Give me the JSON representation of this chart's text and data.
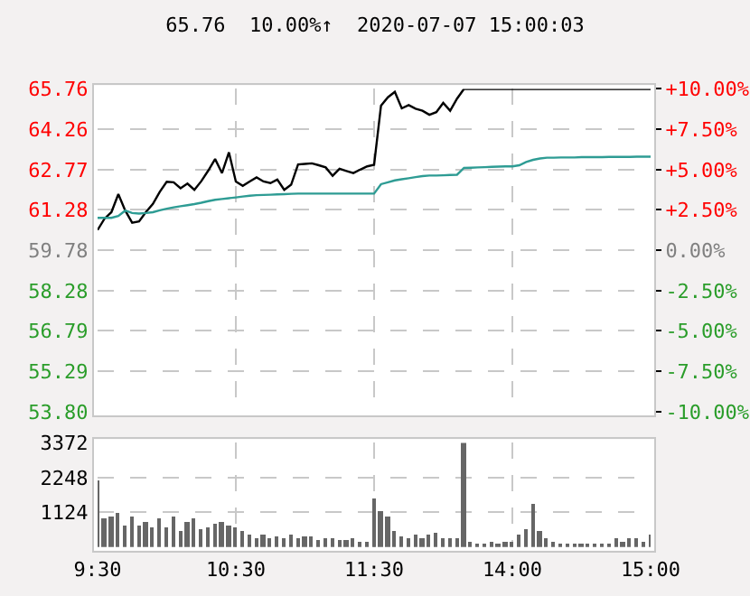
{
  "chart_data": [
    {
      "type": "line",
      "title": "65.76  10.00%↑  2020-07-07 15:00:03",
      "categories": [
        null,
        null,
        null,
        null,
        null,
        null,
        null,
        null,
        null,
        null,
        null,
        null,
        null,
        null,
        null,
        null,
        null,
        null,
        null,
        null,
        null,
        null,
        null,
        null,
        null,
        null,
        null,
        null,
        null,
        null,
        null,
        null,
        null,
        null,
        null,
        null,
        null,
        null,
        null,
        null,
        null,
        null,
        null,
        null,
        null,
        null,
        null,
        null,
        null,
        null,
        null,
        null,
        null,
        null,
        null,
        null,
        null,
        null,
        null,
        null,
        null,
        null,
        null,
        null,
        null,
        null,
        null,
        null,
        null,
        null,
        null,
        null,
        null,
        null,
        null,
        null,
        null,
        null,
        null,
        null,
        null
      ],
      "series": [
        {
          "color": "#000000",
          "values": [
            60.53,
            60.95,
            61.19,
            61.86,
            61.25,
            60.8,
            60.85,
            61.2,
            61.5,
            61.95,
            62.32,
            62.3,
            62.08,
            62.25,
            62.02,
            62.34,
            62.73,
            63.16,
            62.64,
            63.41,
            62.33,
            62.17,
            62.33,
            62.48,
            62.33,
            62.27,
            62.4,
            62.02,
            62.21,
            62.96,
            62.98,
            63.0,
            62.93,
            62.85,
            62.54,
            62.8,
            62.72,
            62.64,
            62.77,
            62.89,
            62.95,
            65.14,
            65.45,
            65.65,
            65.04,
            65.16,
            65.03,
            64.95,
            64.8,
            64.9,
            65.24,
            64.95,
            65.4,
            65.76,
            65.76,
            65.76,
            65.76,
            65.76,
            65.76,
            65.76,
            65.76,
            65.76,
            65.76,
            65.76,
            65.76,
            65.76,
            65.76,
            65.76,
            65.76,
            65.76,
            65.76,
            65.76,
            65.76,
            65.76,
            65.76,
            65.76,
            65.76,
            65.76,
            65.76,
            65.76,
            65.76
          ]
        },
        {
          "color": "#2e9c94",
          "values": [
            60.98,
            60.98,
            60.98,
            61.05,
            61.25,
            61.16,
            61.14,
            61.16,
            61.19,
            61.26,
            61.32,
            61.37,
            61.41,
            61.45,
            61.49,
            61.54,
            61.6,
            61.65,
            61.68,
            61.71,
            61.74,
            61.77,
            61.8,
            61.82,
            61.83,
            61.84,
            61.85,
            61.86,
            61.87,
            61.88,
            61.88,
            61.88,
            61.88,
            61.88,
            61.88,
            61.88,
            61.88,
            61.88,
            61.88,
            61.88,
            61.88,
            62.23,
            62.3,
            62.37,
            62.41,
            62.45,
            62.49,
            62.53,
            62.55,
            62.55,
            62.56,
            62.57,
            62.58,
            62.83,
            62.84,
            62.85,
            62.86,
            62.87,
            62.88,
            62.89,
            62.89,
            62.93,
            63.05,
            63.13,
            63.18,
            63.21,
            63.21,
            63.22,
            63.22,
            63.22,
            63.23,
            63.23,
            63.23,
            63.23,
            63.24,
            63.24,
            63.24,
            63.24,
            63.25,
            63.25,
            63.25
          ]
        }
      ],
      "ylim": [
        53.8,
        65.76
      ],
      "yticks": [
        65.76,
        64.26,
        62.77,
        61.28,
        59.78,
        58.28,
        56.79,
        55.29,
        {
          "value": 53.8,
          "label": "53.80"
        }
      ],
      "y2lim": [
        -10,
        10
      ],
      "y2ticks": [
        {
          "value": 10,
          "label": "+10.00%"
        },
        {
          "value": 7.5,
          "label": "+7.50%"
        },
        {
          "value": 5,
          "label": "+5.00%"
        },
        {
          "value": 2.5,
          "label": "+2.50%"
        },
        {
          "value": 0,
          "label": "0.00%"
        },
        {
          "value": -2.5,
          "label": "-2.50%"
        },
        {
          "value": -5,
          "label": "-5.00%"
        },
        {
          "value": -7.5,
          "label": "-7.50%"
        },
        {
          "value": -10,
          "label": "-10.00%"
        }
      ],
      "grid": true,
      "tick_labels": "y"
    },
    {
      "type": "bar",
      "color": "#666666",
      "categories": [
        "9:30",
        null,
        null,
        null,
        null,
        null,
        null,
        null,
        null,
        null,
        null,
        null,
        null,
        null,
        null,
        null,
        null,
        null,
        null,
        null,
        "10:30",
        null,
        null,
        null,
        null,
        null,
        null,
        null,
        null,
        null,
        null,
        null,
        null,
        null,
        null,
        null,
        null,
        null,
        null,
        null,
        "11:30",
        null,
        null,
        null,
        null,
        null,
        null,
        null,
        null,
        null,
        null,
        null,
        null,
        null,
        null,
        null,
        null,
        null,
        null,
        null,
        "14:00",
        null,
        null,
        null,
        null,
        null,
        null,
        null,
        null,
        null,
        null,
        null,
        null,
        null,
        null,
        null,
        null,
        null,
        null,
        null,
        "15:00"
      ],
      "values": [
        2150,
        900,
        950,
        1100,
        700,
        950,
        700,
        800,
        600,
        900,
        600,
        1000,
        500,
        800,
        900,
        550,
        600,
        750,
        800,
        700,
        650,
        500,
        400,
        300,
        400,
        250,
        350,
        250,
        400,
        250,
        350,
        350,
        200,
        250,
        250,
        200,
        200,
        250,
        150,
        150,
        1550,
        1150,
        950,
        500,
        350,
        300,
        400,
        250,
        400,
        450,
        250,
        250,
        300,
        3350,
        150,
        100,
        100,
        150,
        100,
        150,
        150,
        400,
        550,
        1400,
        500,
        250,
        150,
        100,
        100,
        100,
        100,
        100,
        100,
        100,
        100,
        300,
        150,
        250,
        250,
        150,
        400
      ],
      "ylim": [
        0,
        3372
      ],
      "yticks": [
        1124,
        2248,
        3372
      ],
      "grid": true
    }
  ]
}
